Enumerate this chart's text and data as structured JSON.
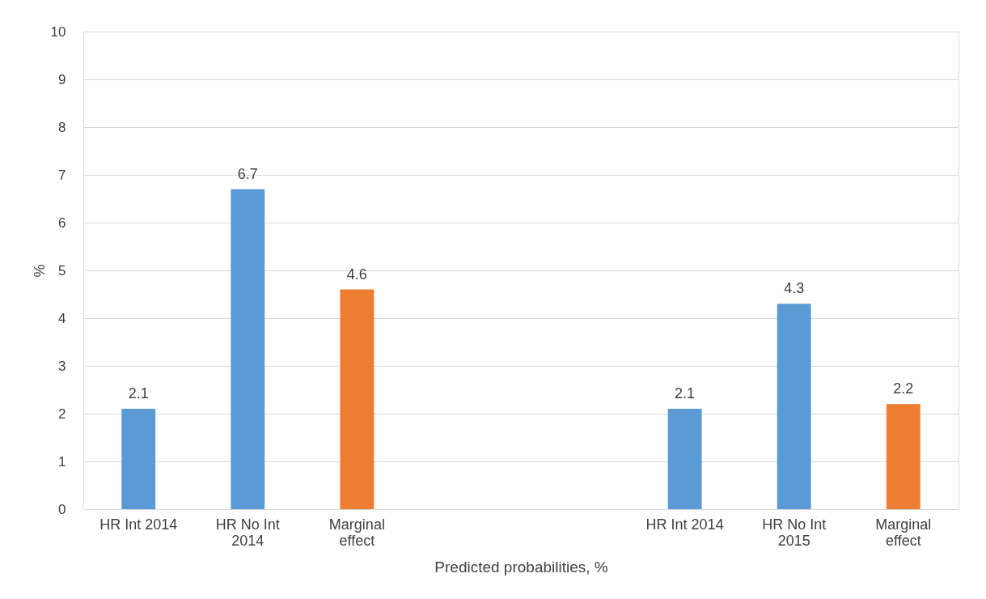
{
  "chart_data": {
    "type": "bar",
    "categories": [
      "HR Int 2014",
      "HR No Int 2014",
      "Marginal effect",
      null,
      null,
      "HR Int 2014",
      "HR No Int 2015",
      "Marginal effect"
    ],
    "values": [
      2.1,
      6.7,
      4.6,
      null,
      null,
      2.1,
      4.3,
      2.2
    ],
    "colors": [
      "#5b9bd5",
      "#5b9bd5",
      "#ed7d31",
      null,
      null,
      "#5b9bd5",
      "#5b9bd5",
      "#ed7d31"
    ],
    "ylim": [
      0,
      10
    ],
    "yticks": [
      0,
      1,
      2,
      3,
      4,
      5,
      6,
      7,
      8,
      9,
      10
    ],
    "ylabel": "%",
    "xlabel": "Predicted probabilities, %",
    "grid": "y",
    "data_labels": true
  }
}
